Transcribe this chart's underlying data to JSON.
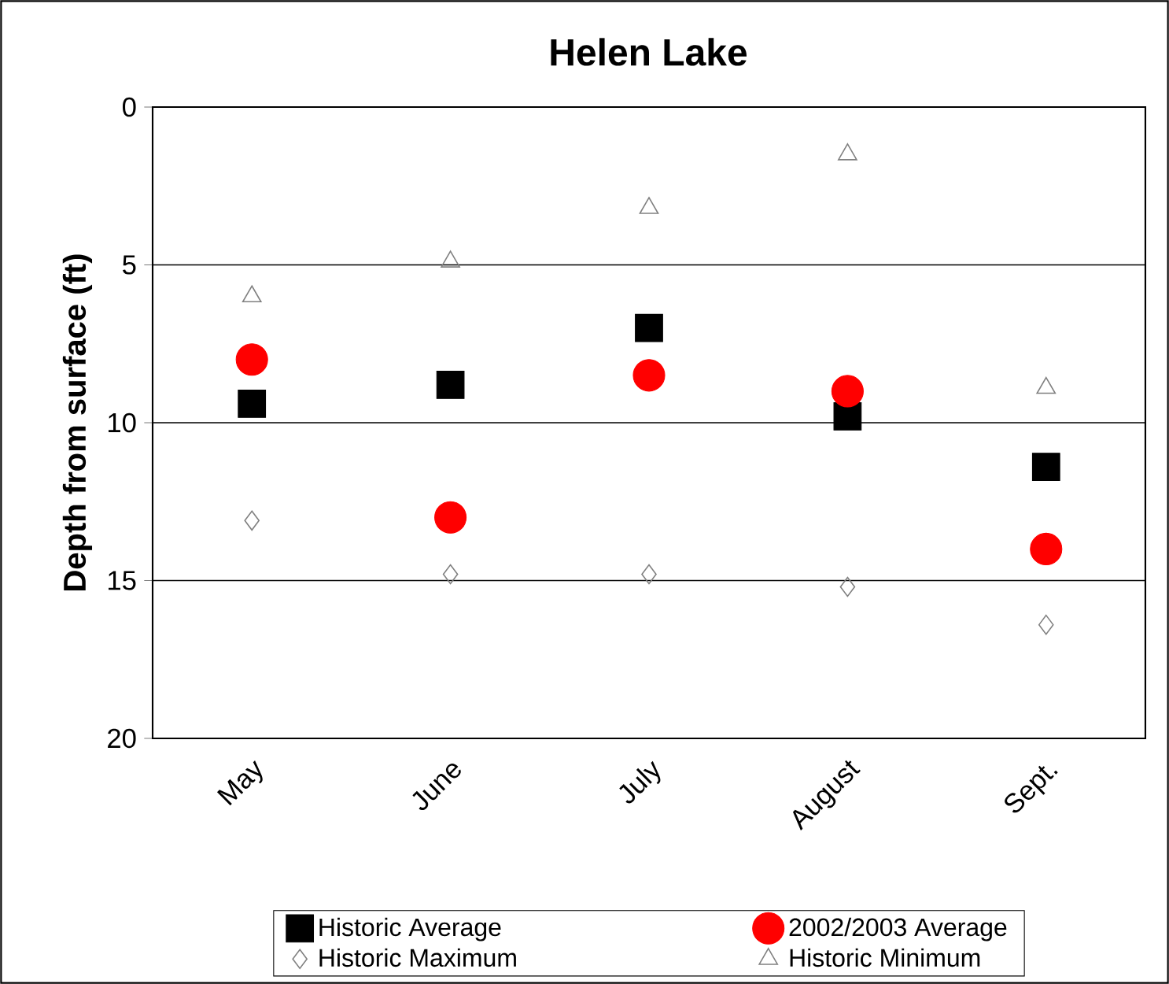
{
  "chart_data": {
    "type": "scatter",
    "title": "Helen Lake",
    "ylabel": "Depth from surface (ft)",
    "categories": [
      "May",
      "June",
      "July",
      "August",
      "Sept."
    ],
    "series": [
      {
        "name": "Historic Average",
        "color": "#000000",
        "marker": "square",
        "values": [
          9.4,
          8.8,
          7.0,
          9.8,
          11.4
        ]
      },
      {
        "name": "2002/2003 Average",
        "color": "#ff0000",
        "marker": "circle",
        "values": [
          8.0,
          13.0,
          8.5,
          9.0,
          14.0
        ]
      },
      {
        "name": "Historic Maximum",
        "color": "#808080",
        "marker": "diamond",
        "values": [
          13.1,
          14.8,
          14.8,
          15.2,
          16.4
        ]
      },
      {
        "name": "Historic Minimum",
        "color": "#808080",
        "marker": "triangle",
        "values": [
          6.0,
          4.9,
          3.2,
          1.5,
          8.9
        ]
      }
    ],
    "ylim": [
      20,
      0
    ],
    "yticks": [
      0,
      5,
      10,
      15,
      20
    ],
    "grid": "y",
    "legend": "bottom"
  }
}
